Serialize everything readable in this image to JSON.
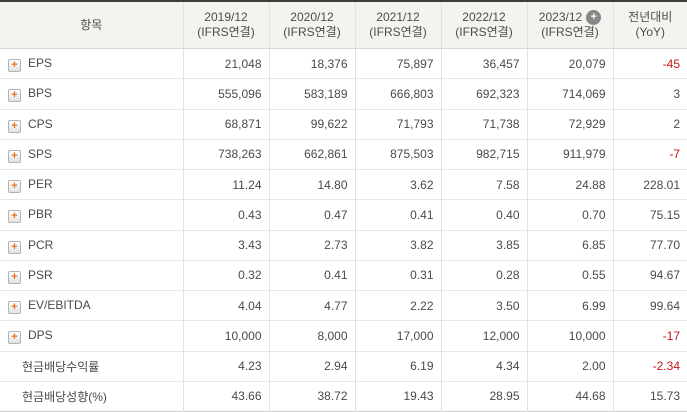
{
  "table": {
    "item_header": "항목",
    "columns": [
      {
        "line1": "2019/12",
        "line2": "(IFRS연결)",
        "add_icon": false
      },
      {
        "line1": "2020/12",
        "line2": "(IFRS연결)",
        "add_icon": false
      },
      {
        "line1": "2021/12",
        "line2": "(IFRS연결)",
        "add_icon": false
      },
      {
        "line1": "2022/12",
        "line2": "(IFRS연결)",
        "add_icon": false
      },
      {
        "line1": "2023/12",
        "line2": "(IFRS연결)",
        "add_icon": true
      }
    ],
    "yoy_header": {
      "line1": "전년대비",
      "line2": "(YoY)"
    },
    "rows": [
      {
        "label": "EPS",
        "has_icon": true,
        "values": [
          "21,048",
          "18,376",
          "75,897",
          "36,457",
          "20,079"
        ],
        "yoy": "-45"
      },
      {
        "label": "BPS",
        "has_icon": true,
        "values": [
          "555,096",
          "583,189",
          "666,803",
          "692,323",
          "714,069"
        ],
        "yoy": "3"
      },
      {
        "label": "CPS",
        "has_icon": true,
        "values": [
          "68,871",
          "99,622",
          "71,793",
          "71,738",
          "72,929"
        ],
        "yoy": "2"
      },
      {
        "label": "SPS",
        "has_icon": true,
        "values": [
          "738,263",
          "662,861",
          "875,503",
          "982,715",
          "911,979"
        ],
        "yoy": "-7"
      },
      {
        "label": "PER",
        "has_icon": true,
        "values": [
          "11.24",
          "14.80",
          "3.62",
          "7.58",
          "24.88"
        ],
        "yoy": "228.01"
      },
      {
        "label": "PBR",
        "has_icon": true,
        "values": [
          "0.43",
          "0.47",
          "0.41",
          "0.40",
          "0.70"
        ],
        "yoy": "75.15"
      },
      {
        "label": "PCR",
        "has_icon": true,
        "values": [
          "3.43",
          "2.73",
          "3.82",
          "3.85",
          "6.85"
        ],
        "yoy": "77.70"
      },
      {
        "label": "PSR",
        "has_icon": true,
        "values": [
          "0.32",
          "0.41",
          "0.31",
          "0.28",
          "0.55"
        ],
        "yoy": "94.67"
      },
      {
        "label": "EV/EBITDA",
        "has_icon": true,
        "values": [
          "4.04",
          "4.77",
          "2.22",
          "3.50",
          "6.99"
        ],
        "yoy": "99.64"
      },
      {
        "label": "DPS",
        "has_icon": true,
        "values": [
          "10,000",
          "8,000",
          "17,000",
          "12,000",
          "10,000"
        ],
        "yoy": "-17"
      },
      {
        "label": "현금배당수익률",
        "has_icon": false,
        "values": [
          "4.23",
          "2.94",
          "6.19",
          "4.34",
          "2.00"
        ],
        "yoy": "-2.34"
      },
      {
        "label": "현금배당성향(%)",
        "has_icon": false,
        "values": [
          "43.66",
          "38.72",
          "19.43",
          "28.95",
          "44.68"
        ],
        "yoy": "15.73"
      }
    ],
    "colors": {
      "negative": "#c8161d",
      "accent_orange": "#e8711a",
      "header_bg": "#f5f3ef",
      "top_border": "#3f3f3f"
    }
  },
  "icons": {
    "expand_plus": "+",
    "add_column": "+"
  }
}
